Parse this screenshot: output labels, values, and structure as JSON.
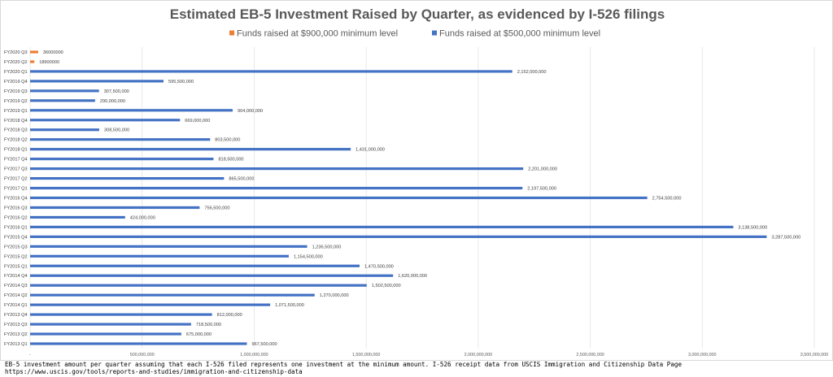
{
  "chart_data": {
    "type": "bar",
    "orientation": "horizontal",
    "title": "Estimated EB-5 Investment Raised by Quarter, as evidenced by I-526 filings",
    "legend_position": "top",
    "grid": true,
    "xlim": [
      0,
      3500000000
    ],
    "x_ticks": [
      {
        "value": 0,
        "label": "-"
      },
      {
        "value": 500000000,
        "label": "500,000,000"
      },
      {
        "value": 1000000000,
        "label": "1,000,000,000"
      },
      {
        "value": 1500000000,
        "label": "1,500,000,000"
      },
      {
        "value": 2000000000,
        "label": "2,000,000,000"
      },
      {
        "value": 2500000000,
        "label": "2,500,000,000"
      },
      {
        "value": 3000000000,
        "label": "3,000,000,000"
      },
      {
        "value": 3500000000,
        "label": "3,500,000,000"
      }
    ],
    "series": [
      {
        "name": "Funds raised at $900,000 minimum level",
        "color": "#ED7D31"
      },
      {
        "name": "Funds raised at $500,000 minimum level",
        "color": "#4472C4"
      }
    ],
    "bars": [
      {
        "category": "FY2020 Q3",
        "series": 0,
        "value": 36000000,
        "label": "36000000"
      },
      {
        "category": "FY2020 Q2",
        "series": 0,
        "value": 18900000,
        "label": "18900000"
      },
      {
        "category": "FY2020 Q1",
        "series": 1,
        "value": 2152000000,
        "label": "2,152,000,000"
      },
      {
        "category": "FY2019 Q4",
        "series": 1,
        "value": 595500000,
        "label": "595,500,000"
      },
      {
        "category": "FY2019 Q3",
        "series": 1,
        "value": 307500000,
        "label": "307,500,000"
      },
      {
        "category": "FY2019 Q2",
        "series": 1,
        "value": 290000000,
        "label": "290,000,000"
      },
      {
        "category": "FY2019 Q1",
        "series": 1,
        "value": 904000000,
        "label": "904,000,000"
      },
      {
        "category": "FY2018 Q4",
        "series": 1,
        "value": 669000000,
        "label": "669,000,000"
      },
      {
        "category": "FY2018 Q3",
        "series": 1,
        "value": 308500000,
        "label": "308,500,000"
      },
      {
        "category": "FY2018 Q2",
        "series": 1,
        "value": 803500000,
        "label": "803,500,000"
      },
      {
        "category": "FY2018 Q1",
        "series": 1,
        "value": 1431000000,
        "label": "1,431,000,000"
      },
      {
        "category": "FY2017 Q4",
        "series": 1,
        "value": 818500000,
        "label": "818,500,000"
      },
      {
        "category": "FY2017 Q3",
        "series": 1,
        "value": 2201000000,
        "label": "2,201,000,000"
      },
      {
        "category": "FY2017 Q2",
        "series": 1,
        "value": 865500000,
        "label": "865,500,000"
      },
      {
        "category": "FY2017 Q1",
        "series": 1,
        "value": 2197500000,
        "label": "2,197,500,000"
      },
      {
        "category": "FY2016 Q4",
        "series": 1,
        "value": 2754500000,
        "label": "2,754,500,000"
      },
      {
        "category": "FY2016 Q3",
        "series": 1,
        "value": 756500000,
        "label": "756,500,000"
      },
      {
        "category": "FY2016 Q2",
        "series": 1,
        "value": 424000000,
        "label": "424,000,000"
      },
      {
        "category": "FY2016 Q1",
        "series": 1,
        "value": 3138500000,
        "label": "3,138,500,000"
      },
      {
        "category": "FY2015 Q4",
        "series": 1,
        "value": 3287500000,
        "label": "3,287,500,000"
      },
      {
        "category": "FY2015 Q3",
        "series": 1,
        "value": 1236500000,
        "label": "1,236,500,000"
      },
      {
        "category": "FY2015 Q2",
        "series": 1,
        "value": 1154500000,
        "label": "1,154,500,000"
      },
      {
        "category": "FY2015 Q1",
        "series": 1,
        "value": 1470500000,
        "label": "1,470,500,000"
      },
      {
        "category": "FY2014 Q4",
        "series": 1,
        "value": 1620000000,
        "label": "1,620,000,000"
      },
      {
        "category": "FY2014 Q3",
        "series": 1,
        "value": 1502500000,
        "label": "1,502,500,000"
      },
      {
        "category": "FY2014 Q2",
        "series": 1,
        "value": 1270000000,
        "label": "1,270,000,000"
      },
      {
        "category": "FY2014 Q1",
        "series": 1,
        "value": 1071500000,
        "label": "1,071,500,000"
      },
      {
        "category": "FY2013 Q4",
        "series": 1,
        "value": 812000000,
        "label": "812,000,000"
      },
      {
        "category": "FY2013 Q3",
        "series": 1,
        "value": 718500000,
        "label": "718,500,000"
      },
      {
        "category": "FY2013 Q2",
        "series": 1,
        "value": 675000000,
        "label": "675,000,000"
      },
      {
        "category": "FY2013 Q1",
        "series": 1,
        "value": 967500000,
        "label": "967,500,000"
      }
    ]
  },
  "footer": {
    "note": "EB-5 investment amount per quarter assuming that each I-526 filed represents one investment at the minimum amount. I-526 receipt data from USCIS Immigration and Citizenship Data Page",
    "source_url": "https://www.uscis.gov/tools/reports-and-studies/immigration-and-citizenship-data"
  }
}
